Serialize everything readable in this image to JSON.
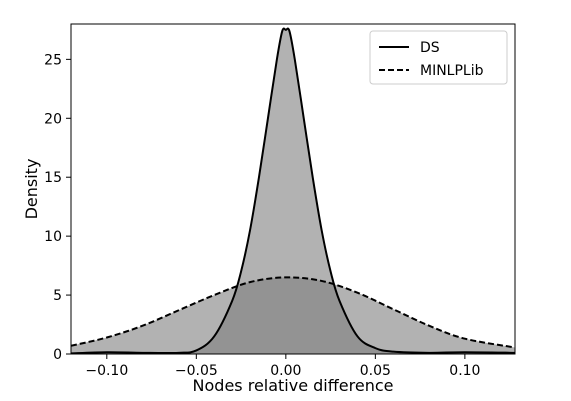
{
  "chart_data": {
    "type": "area",
    "title": "",
    "xlabel": "Nodes relative difference",
    "ylabel": "Density",
    "xlim": [
      -0.12,
      0.128
    ],
    "ylim": [
      0,
      28
    ],
    "xticks": [
      -0.1,
      -0.05,
      0.0,
      0.05,
      0.1
    ],
    "xtick_labels": [
      "−0.10",
      "−0.05",
      "0.00",
      "0.05",
      "0.10"
    ],
    "yticks": [
      0,
      5,
      10,
      15,
      20,
      25
    ],
    "ytick_labels": [
      "0",
      "5",
      "10",
      "15",
      "20",
      "25"
    ],
    "grid": false,
    "legend_position": "top-right",
    "series": [
      {
        "name": "DS",
        "line_style": "solid",
        "x": [
          -0.12,
          -0.1,
          -0.08,
          -0.06,
          -0.05,
          -0.04,
          -0.03,
          -0.025,
          -0.02,
          -0.015,
          -0.01,
          -0.005,
          -0.002,
          0.0,
          0.002,
          0.005,
          0.01,
          0.015,
          0.02,
          0.025,
          0.03,
          0.04,
          0.05,
          0.06,
          0.08,
          0.1,
          0.128
        ],
        "y": [
          0.05,
          0.15,
          0.1,
          0.1,
          0.3,
          1.5,
          4.5,
          7.0,
          10.5,
          15.0,
          20.0,
          25.0,
          27.4,
          27.5,
          27.4,
          25.0,
          20.0,
          15.0,
          10.5,
          7.0,
          4.5,
          1.5,
          0.5,
          0.2,
          0.1,
          0.15,
          0.1
        ]
      },
      {
        "name": "MINLPLib",
        "line_style": "dashed",
        "x": [
          -0.12,
          -0.1,
          -0.08,
          -0.06,
          -0.04,
          -0.02,
          0.0,
          0.02,
          0.04,
          0.06,
          0.08,
          0.1,
          0.128
        ],
        "y": [
          0.7,
          1.4,
          2.4,
          3.7,
          5.0,
          6.1,
          6.5,
          6.2,
          5.2,
          3.8,
          2.4,
          1.3,
          0.55
        ]
      }
    ]
  },
  "colors": {
    "fill": "#7f7f7f",
    "fill_opacity": 0.6,
    "line": "#000000"
  }
}
